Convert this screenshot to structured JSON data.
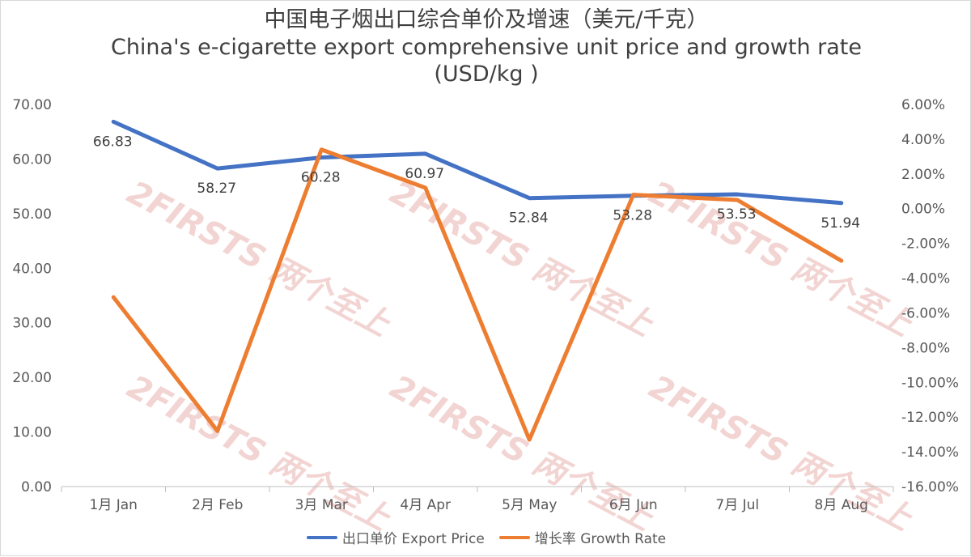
{
  "title": {
    "line1": "中国电子烟出口综合单价及增速（美元/千克）",
    "line2": "China's e-cigarette export comprehensive unit price and growth rate",
    "line3": "(USD/kg )"
  },
  "watermark": "2FIRSTS 两个至上",
  "colors": {
    "price": "#4472C4",
    "growth": "#ED7D31",
    "grid": "#d9d9d9",
    "axis": "#bfbfbf"
  },
  "legend": {
    "price": "出口单价 Export Price",
    "growth": "增长率 Growth Rate"
  },
  "chart_data": {
    "type": "line",
    "categories": [
      "1月 Jan",
      "2月 Feb",
      "3月 Mar",
      "4月 Apr",
      "5月 May",
      "6月 Jun",
      "7月 Jul",
      "8月 Aug"
    ],
    "series": [
      {
        "name": "出口单价 Export Price",
        "axis": "left",
        "values": [
          66.83,
          58.27,
          60.28,
          60.97,
          52.84,
          53.28,
          53.53,
          51.94
        ],
        "data_labels": [
          "66.83",
          "58.27",
          "60.28",
          "60.97",
          "52.84",
          "53.28",
          "53.53",
          "51.94"
        ]
      },
      {
        "name": "增长率 Growth Rate",
        "axis": "right",
        "values": [
          -5.1,
          -12.8,
          3.4,
          1.2,
          -13.3,
          0.8,
          0.5,
          -3.0
        ]
      }
    ],
    "y_left": {
      "lim": [
        0,
        70
      ],
      "ticks": [
        "0.00",
        "10.00",
        "20.00",
        "30.00",
        "40.00",
        "50.00",
        "60.00",
        "70.00"
      ]
    },
    "y_right": {
      "lim": [
        -16,
        6
      ],
      "ticks": [
        "-16.00%",
        "-14.00%",
        "-12.00%",
        "-10.00%",
        "-8.00%",
        "-6.00%",
        "-4.00%",
        "-2.00%",
        "0.00%",
        "2.00%",
        "4.00%",
        "6.00%"
      ]
    },
    "legend_position": "bottom"
  }
}
